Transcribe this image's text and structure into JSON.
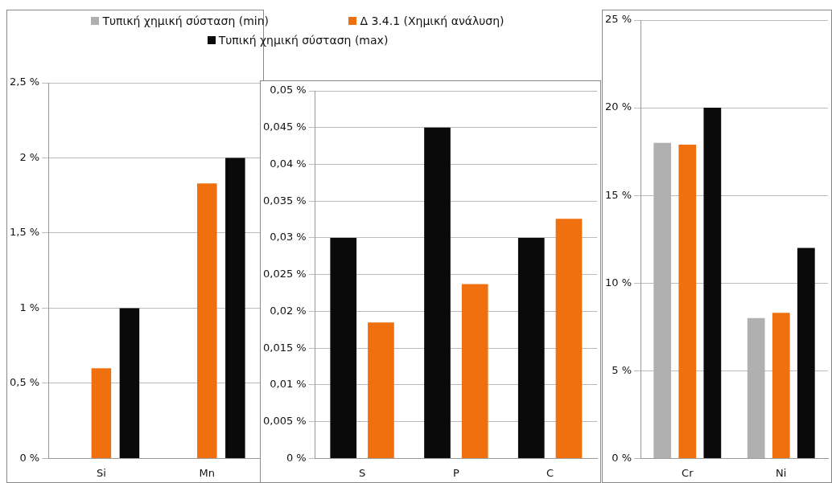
{
  "chart_data": [
    {
      "type": "bar",
      "categories": [
        "Si",
        "Mn"
      ],
      "series": [
        {
          "name": "Τυπική χημική σύσταση (min)",
          "color": "#b0b0b0",
          "values": [
            null,
            null
          ]
        },
        {
          "name": "Δ 3.4.1  (Χημική ανάλυση)",
          "color": "#f07010",
          "values": [
            0.6,
            1.83
          ]
        },
        {
          "name": "Τυπική χημική σύσταση (max)",
          "color": "#0a0a0a",
          "values": [
            1.0,
            2.0
          ]
        }
      ],
      "ylim": [
        0,
        2.5
      ],
      "yticks": [
        {
          "value": 0,
          "label": "0 %"
        },
        {
          "value": 0.5,
          "label": "0,5 %"
        },
        {
          "value": 1,
          "label": "1 %"
        },
        {
          "value": 1.5,
          "label": "1,5 %"
        },
        {
          "value": 2,
          "label": "2 %"
        },
        {
          "value": 2.5,
          "label": "2,5 %"
        }
      ],
      "grid": "y",
      "legend": "top"
    },
    {
      "type": "bar",
      "categories": [
        "S",
        "P",
        "C"
      ],
      "series": [
        {
          "color": "#0a0a0a",
          "values": [
            0.03,
            0.045,
            0.03
          ]
        },
        {
          "color": "#f07010",
          "values": [
            0.0185,
            0.0237,
            0.0326
          ]
        }
      ],
      "ylim": [
        0,
        0.05
      ],
      "yticks": [
        {
          "value": 0,
          "label": "0 %"
        },
        {
          "value": 0.005,
          "label": "0,005 %"
        },
        {
          "value": 0.01,
          "label": "0,01 %"
        },
        {
          "value": 0.015,
          "label": "0,015 %"
        },
        {
          "value": 0.02,
          "label": "0,02 %"
        },
        {
          "value": 0.025,
          "label": "0,025 %"
        },
        {
          "value": 0.03,
          "label": "0,03 %"
        },
        {
          "value": 0.035,
          "label": "0,035 %"
        },
        {
          "value": 0.04,
          "label": "0,04 %"
        },
        {
          "value": 0.045,
          "label": "0,045 %"
        },
        {
          "value": 0.05,
          "label": "0,05 %"
        }
      ],
      "grid": "y"
    },
    {
      "type": "bar",
      "categories": [
        "Cr",
        "Ni"
      ],
      "series": [
        {
          "color": "#b0b0b0",
          "values": [
            18.0,
            8.0
          ]
        },
        {
          "color": "#f07010",
          "values": [
            17.9,
            8.3
          ]
        },
        {
          "color": "#0a0a0a",
          "values": [
            20,
            12
          ]
        }
      ],
      "ylim": [
        0,
        25
      ],
      "yticks": [
        {
          "value": 0,
          "label": "0 %"
        },
        {
          "value": 5,
          "label": "5 %"
        },
        {
          "value": 10,
          "label": "10 %"
        },
        {
          "value": 15,
          "label": "15 %"
        },
        {
          "value": 20,
          "label": "20 %"
        },
        {
          "value": 25,
          "label": "25 %"
        }
      ],
      "grid": "y"
    }
  ]
}
